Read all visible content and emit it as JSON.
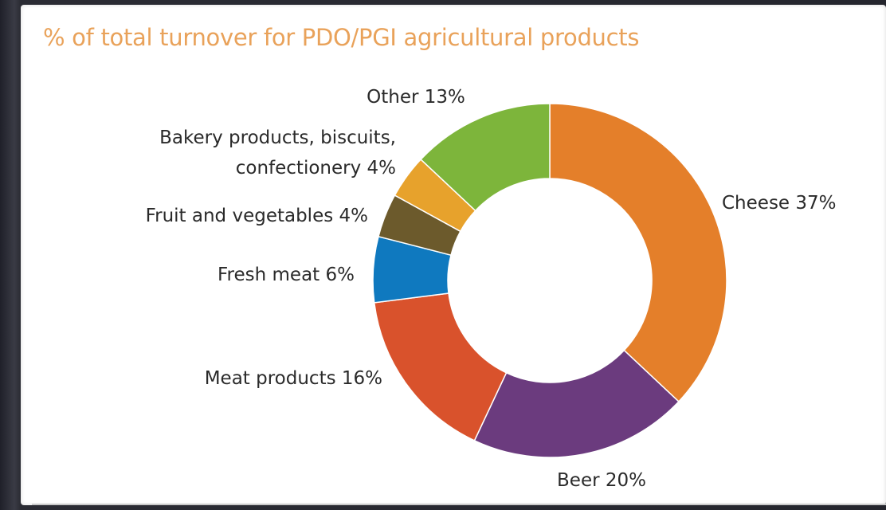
{
  "chart_data": {
    "type": "pie",
    "donut": true,
    "title": "% of total turnover for PDO/PGI agricultural products",
    "slices": [
      {
        "label": "Cheese 37%",
        "name": "Cheese",
        "value": 37,
        "color": "#e47f2a"
      },
      {
        "label": "Beer 20%",
        "name": "Beer",
        "value": 20,
        "color": "#6b3b7e"
      },
      {
        "label": "Meat products 16%",
        "name": "Meat products",
        "value": 16,
        "color": "#d9522c"
      },
      {
        "label": "Fresh meat 6%",
        "name": "Fresh meat",
        "value": 6,
        "color": "#0f79bf"
      },
      {
        "label": "Fruit and vegetables 4%",
        "name": "Fruit and vegetables",
        "value": 4,
        "color": "#6c5a2c"
      },
      {
        "label": [
          "Bakery products, biscuits,",
          "confectionery 4%"
        ],
        "name": "Bakery products, biscuits, confectionery",
        "value": 4,
        "color": "#e7a22c"
      },
      {
        "label": "Other 13%",
        "name": "Other",
        "value": 13,
        "color": "#7db53b"
      }
    ],
    "legend": "none",
    "start_angle": "top, clockwise"
  }
}
